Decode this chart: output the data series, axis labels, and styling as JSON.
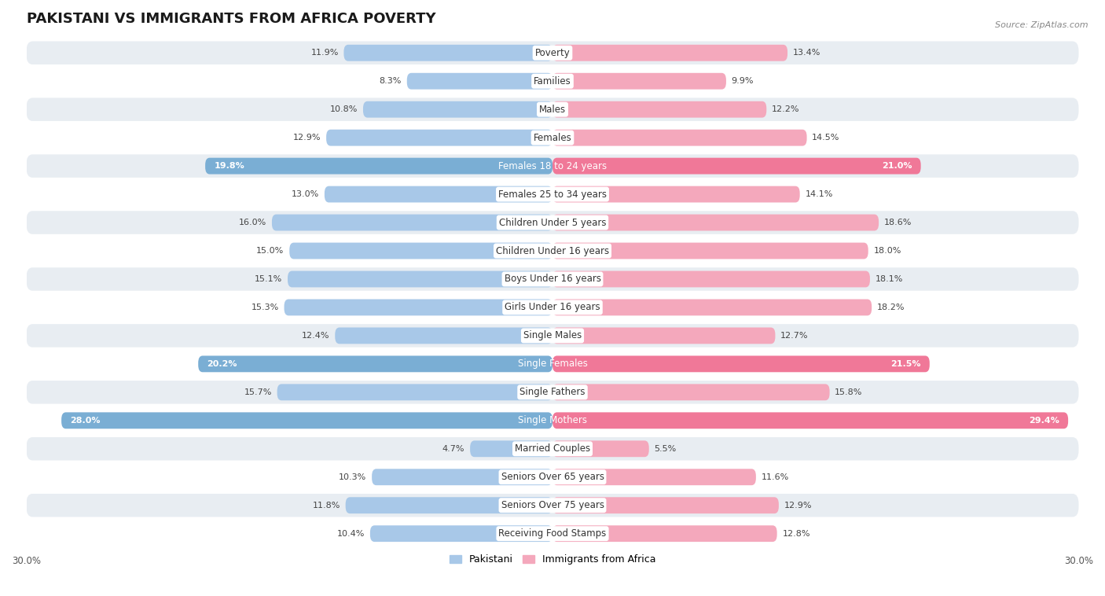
{
  "title": "PAKISTANI VS IMMIGRANTS FROM AFRICA POVERTY",
  "source": "Source: ZipAtlas.com",
  "categories": [
    "Poverty",
    "Families",
    "Males",
    "Females",
    "Females 18 to 24 years",
    "Females 25 to 34 years",
    "Children Under 5 years",
    "Children Under 16 years",
    "Boys Under 16 years",
    "Girls Under 16 years",
    "Single Males",
    "Single Females",
    "Single Fathers",
    "Single Mothers",
    "Married Couples",
    "Seniors Over 65 years",
    "Seniors Over 75 years",
    "Receiving Food Stamps"
  ],
  "pakistani": [
    11.9,
    8.3,
    10.8,
    12.9,
    19.8,
    13.0,
    16.0,
    15.0,
    15.1,
    15.3,
    12.4,
    20.2,
    15.7,
    28.0,
    4.7,
    10.3,
    11.8,
    10.4
  ],
  "africa": [
    13.4,
    9.9,
    12.2,
    14.5,
    21.0,
    14.1,
    18.6,
    18.0,
    18.1,
    18.2,
    12.7,
    21.5,
    15.8,
    29.4,
    5.5,
    11.6,
    12.9,
    12.8
  ],
  "pakistani_color_normal": "#a8c8e8",
  "africa_color_normal": "#f4a8bc",
  "pakistani_color_highlight": "#7aaed4",
  "africa_color_highlight": "#f07898",
  "highlight_rows": [
    4,
    11,
    13
  ],
  "xlim": 30.0,
  "bar_height": 0.58,
  "bg_color": "#ffffff",
  "row_bg_color": "#e8edf2",
  "row_white_color": "#ffffff",
  "title_fontsize": 13,
  "label_fontsize": 8.5,
  "value_fontsize": 8.0,
  "axis_label_fontsize": 8.5
}
